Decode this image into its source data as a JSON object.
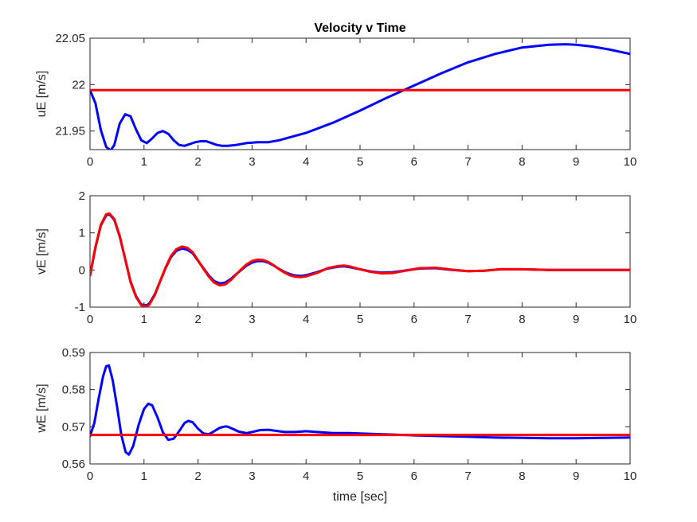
{
  "figure": {
    "title": "Velocity v Time",
    "background": "#ffffff",
    "axes_color": "#262626"
  },
  "chart_data": [
    {
      "type": "line",
      "title": "Velocity v Time",
      "xlabel": "",
      "ylabel": "uE [m/s]",
      "xlim": [
        0,
        10
      ],
      "ylim": [
        21.93,
        22.05
      ],
      "xticks": [
        "0",
        "1",
        "2",
        "3",
        "4",
        "5",
        "6",
        "7",
        "8",
        "9",
        "10"
      ],
      "yticks": [
        "21.95",
        "22",
        "22.05"
      ],
      "yticks_values": [
        21.95,
        22.0,
        22.05
      ],
      "grid": false,
      "series": [
        {
          "color": "#0000ff",
          "x": [
            0,
            0.1,
            0.2,
            0.3,
            0.38,
            0.45,
            0.55,
            0.65,
            0.75,
            0.85,
            0.95,
            1.05,
            1.15,
            1.25,
            1.35,
            1.45,
            1.55,
            1.65,
            1.75,
            1.85,
            1.95,
            2.05,
            2.15,
            2.25,
            2.35,
            2.45,
            2.55,
            2.7,
            2.9,
            3.1,
            3.3,
            3.5,
            4,
            4.5,
            5,
            5.5,
            6,
            6.5,
            7,
            7.5,
            8,
            8.5,
            8.8,
            9,
            9.3,
            9.6,
            10
          ],
          "values": [
            21.994,
            21.98,
            21.951,
            21.933,
            21.929,
            21.935,
            21.958,
            21.968,
            21.966,
            21.952,
            21.94,
            21.937,
            21.942,
            21.948,
            21.95,
            21.947,
            21.94,
            21.935,
            21.934,
            21.936,
            21.938,
            21.939,
            21.939,
            21.937,
            21.935,
            21.934,
            21.934,
            21.935,
            21.937,
            21.938,
            21.938,
            21.94,
            21.948,
            21.959,
            21.972,
            21.986,
            21.999,
            22.012,
            22.024,
            22.033,
            22.04,
            22.043,
            22.0435,
            22.043,
            22.041,
            22.038,
            22.033
          ]
        },
        {
          "color": "#ff0000",
          "x": [
            0,
            10
          ],
          "values": [
            21.994,
            21.994
          ]
        }
      ]
    },
    {
      "type": "line",
      "xlabel": "",
      "ylabel": "vE [m/s]",
      "xlim": [
        0,
        10
      ],
      "ylim": [
        -1,
        2
      ],
      "xticks": [
        "0",
        "1",
        "2",
        "3",
        "4",
        "5",
        "6",
        "7",
        "8",
        "9",
        "10"
      ],
      "yticks": [
        "-1",
        "0",
        "1",
        "2"
      ],
      "yticks_values": [
        -1,
        0,
        1,
        2
      ],
      "grid": false,
      "series": [
        {
          "color": "#0000ff",
          "x": [
            0,
            0.1,
            0.2,
            0.3,
            0.36,
            0.45,
            0.55,
            0.65,
            0.75,
            0.85,
            0.95,
            1.05,
            1.1,
            1.2,
            1.3,
            1.4,
            1.5,
            1.6,
            1.7,
            1.8,
            1.9,
            2.0,
            2.1,
            2.2,
            2.3,
            2.4,
            2.5,
            2.6,
            2.7,
            2.8,
            2.9,
            3.0,
            3.1,
            3.2,
            3.3,
            3.4,
            3.5,
            3.6,
            3.7,
            3.8,
            3.9,
            4.0,
            4.2,
            4.4,
            4.6,
            4.7,
            4.8,
            5.0,
            5.2,
            5.4,
            5.6,
            5.8,
            6.1,
            6.4,
            6.7,
            7.0,
            7.3,
            7.6,
            8.0,
            8.5,
            9.0,
            9.5,
            10
          ],
          "values": [
            -0.15,
            0.6,
            1.2,
            1.47,
            1.5,
            1.35,
            0.9,
            0.3,
            -0.3,
            -0.7,
            -0.93,
            -0.95,
            -0.9,
            -0.65,
            -0.3,
            0.05,
            0.35,
            0.52,
            0.58,
            0.55,
            0.45,
            0.25,
            0.05,
            -0.15,
            -0.3,
            -0.36,
            -0.34,
            -0.25,
            -0.12,
            0.0,
            0.12,
            0.2,
            0.24,
            0.24,
            0.2,
            0.12,
            0.03,
            -0.05,
            -0.11,
            -0.15,
            -0.16,
            -0.14,
            -0.06,
            0.04,
            0.09,
            0.1,
            0.08,
            0.02,
            -0.04,
            -0.07,
            -0.06,
            -0.02,
            0.04,
            0.05,
            0.0,
            -0.03,
            -0.02,
            0.02,
            0.02,
            0.0,
            0.0,
            0.0,
            0.0
          ]
        },
        {
          "color": "#ff0000",
          "x": [
            0,
            0.1,
            0.2,
            0.3,
            0.36,
            0.45,
            0.55,
            0.65,
            0.75,
            0.85,
            0.95,
            1.05,
            1.1,
            1.2,
            1.3,
            1.4,
            1.5,
            1.6,
            1.7,
            1.8,
            1.9,
            2.0,
            2.1,
            2.2,
            2.3,
            2.4,
            2.5,
            2.6,
            2.7,
            2.8,
            2.9,
            3.0,
            3.1,
            3.2,
            3.3,
            3.4,
            3.5,
            3.6,
            3.7,
            3.8,
            3.9,
            4.0,
            4.2,
            4.4,
            4.6,
            4.7,
            4.8,
            5.0,
            5.2,
            5.4,
            5.6,
            5.8,
            6.1,
            6.4,
            6.7,
            7.0,
            7.3,
            7.6,
            8.0,
            8.5,
            9.0,
            9.5,
            10
          ],
          "values": [
            -0.15,
            0.62,
            1.22,
            1.5,
            1.52,
            1.37,
            0.92,
            0.3,
            -0.32,
            -0.72,
            -0.95,
            -0.98,
            -0.93,
            -0.67,
            -0.3,
            0.07,
            0.38,
            0.56,
            0.63,
            0.6,
            0.48,
            0.26,
            0.03,
            -0.18,
            -0.34,
            -0.41,
            -0.39,
            -0.28,
            -0.13,
            0.02,
            0.15,
            0.24,
            0.28,
            0.27,
            0.22,
            0.13,
            0.02,
            -0.07,
            -0.14,
            -0.18,
            -0.19,
            -0.17,
            -0.08,
            0.05,
            0.11,
            0.12,
            0.1,
            0.02,
            -0.05,
            -0.09,
            -0.08,
            -0.03,
            0.05,
            0.06,
            0.01,
            -0.03,
            -0.02,
            0.02,
            0.02,
            0.0,
            0.0,
            0.0,
            0.0
          ]
        }
      ]
    },
    {
      "type": "line",
      "xlabel": "time [sec]",
      "ylabel": "wE [m/s]",
      "xlim": [
        0,
        10
      ],
      "ylim": [
        0.56,
        0.59
      ],
      "xticks": [
        "0",
        "1",
        "2",
        "3",
        "4",
        "5",
        "6",
        "7",
        "8",
        "9",
        "10"
      ],
      "yticks": [
        "0.56",
        "0.57",
        "0.58",
        "0.59"
      ],
      "yticks_values": [
        0.56,
        0.57,
        0.58,
        0.59
      ],
      "grid": false,
      "series": [
        {
          "color": "#0000ff",
          "x": [
            0,
            0.08,
            0.16,
            0.24,
            0.3,
            0.35,
            0.42,
            0.5,
            0.58,
            0.66,
            0.72,
            0.8,
            0.9,
            1.0,
            1.08,
            1.15,
            1.25,
            1.35,
            1.45,
            1.55,
            1.65,
            1.75,
            1.82,
            1.9,
            2.0,
            2.1,
            2.2,
            2.3,
            2.4,
            2.5,
            2.55,
            2.65,
            2.75,
            2.9,
            3.0,
            3.15,
            3.3,
            3.45,
            3.6,
            3.8,
            4.0,
            4.2,
            4.5,
            4.8,
            5.2,
            5.6,
            6.0,
            6.5,
            7.0,
            7.5,
            8.0,
            8.5,
            9.0,
            9.5,
            10
          ],
          "values": [
            0.5675,
            0.571,
            0.5775,
            0.5835,
            0.5863,
            0.5865,
            0.5825,
            0.5755,
            0.5678,
            0.5632,
            0.5625,
            0.5648,
            0.5705,
            0.5748,
            0.5762,
            0.5758,
            0.5725,
            0.5685,
            0.5665,
            0.5668,
            0.5688,
            0.571,
            0.5716,
            0.5712,
            0.5695,
            0.5682,
            0.568,
            0.5688,
            0.5697,
            0.5701,
            0.57,
            0.5694,
            0.5687,
            0.5683,
            0.5686,
            0.5691,
            0.5692,
            0.5689,
            0.5686,
            0.5686,
            0.5688,
            0.5686,
            0.5683,
            0.5683,
            0.5681,
            0.5679,
            0.5677,
            0.5675,
            0.5673,
            0.5671,
            0.567,
            0.5669,
            0.5669,
            0.567,
            0.5671
          ]
        },
        {
          "color": "#ff0000",
          "x": [
            0,
            10
          ],
          "values": [
            0.5678,
            0.5678
          ]
        }
      ]
    }
  ]
}
